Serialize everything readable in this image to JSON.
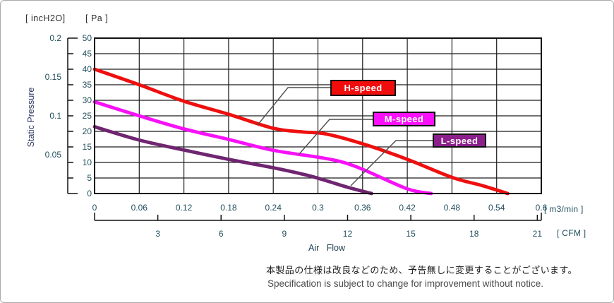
{
  "header_units": {
    "inch": "[ incH2O]",
    "pa": "[ Pa ]"
  },
  "axis_titles": {
    "y": "Static Pressure",
    "x": "Air   Flow",
    "x_unit_primary": "[ m3/min ]",
    "x_unit_secondary": "[ CFM ]"
  },
  "note": {
    "jp": "本製品の仕様は改良などのため、予告無しに変更することがございます。",
    "en": "Specification is subject to change for improvement without notice."
  },
  "chart_data": {
    "type": "line",
    "title": "",
    "xlabel": "Air Flow",
    "ylabel": "Static Pressure",
    "x_axis": {
      "primary_unit": "m3/min",
      "range_m3min": [
        0,
        0.6
      ],
      "gridline_step_m3min": 0.06,
      "tick_values_m3min": [
        0,
        0.06,
        0.12,
        0.18,
        0.24,
        0.3,
        0.36,
        0.42,
        0.48,
        0.54,
        0.6
      ],
      "tick_labels_m3min": [
        "0",
        "0.06",
        "0.12",
        "0.18",
        "0.24",
        "0.3",
        "0.36",
        "0.42",
        "0.48",
        "0.54",
        "0.6"
      ],
      "secondary_unit": "CFM",
      "tick_values_cfm": [
        3,
        6,
        9,
        12,
        15,
        18,
        21
      ],
      "tick_labels_cfm": [
        "3",
        "6",
        "9",
        "12",
        "15",
        "18",
        "21"
      ],
      "cfm_to_m3min": 0.0283168
    },
    "y_axis": {
      "primary_unit": "Pa",
      "range_pa": [
        0,
        50
      ],
      "gridline_step_pa": 5,
      "tick_labels_pa": [
        "50",
        "45",
        "40",
        "35",
        "30",
        "25",
        "20",
        "15",
        "10",
        "5",
        "0"
      ],
      "secondary_unit": "incH2O",
      "tick_values_inch": [
        0.2,
        0.15,
        0.1,
        0.05
      ],
      "tick_labels_inch": [
        "0.2",
        "0.15",
        "0.1",
        "0.05"
      ],
      "inch_full_scale": 0.2
    },
    "grid": true,
    "series": [
      {
        "name": "H-speed",
        "color": "#ee0f0f",
        "points_m3min_pa": [
          [
            0,
            40
          ],
          [
            0.06,
            35
          ],
          [
            0.12,
            29.7
          ],
          [
            0.18,
            25.5
          ],
          [
            0.24,
            21
          ],
          [
            0.28,
            19.8
          ],
          [
            0.31,
            19.2
          ],
          [
            0.36,
            16
          ],
          [
            0.42,
            11
          ],
          [
            0.48,
            5.2
          ],
          [
            0.52,
            2.6
          ],
          [
            0.555,
            0
          ]
        ]
      },
      {
        "name": "M-speed",
        "color": "#f711f7",
        "points_m3min_pa": [
          [
            0,
            29.5
          ],
          [
            0.06,
            25
          ],
          [
            0.12,
            20.8
          ],
          [
            0.18,
            17.4
          ],
          [
            0.24,
            13.9
          ],
          [
            0.3,
            11.7
          ],
          [
            0.33,
            10.3
          ],
          [
            0.36,
            7.8
          ],
          [
            0.42,
            1.5
          ],
          [
            0.452,
            0
          ]
        ]
      },
      {
        "name": "L-speed",
        "color": "#6f2570",
        "points_m3min_pa": [
          [
            0,
            21.5
          ],
          [
            0.06,
            17.2
          ],
          [
            0.12,
            14
          ],
          [
            0.18,
            11
          ],
          [
            0.24,
            8.3
          ],
          [
            0.285,
            5.9
          ],
          [
            0.31,
            4.2
          ],
          [
            0.34,
            2
          ],
          [
            0.372,
            0
          ]
        ]
      }
    ],
    "legend": [
      {
        "label": "H-speed",
        "fill": "#f20d0d"
      },
      {
        "label": "M-speed",
        "fill": "#fa10fa"
      },
      {
        "label": "L-speed",
        "fill": "#8b1f8b"
      }
    ],
    "legend_position": "inside-right, callout boxes with leader lines to curves"
  }
}
